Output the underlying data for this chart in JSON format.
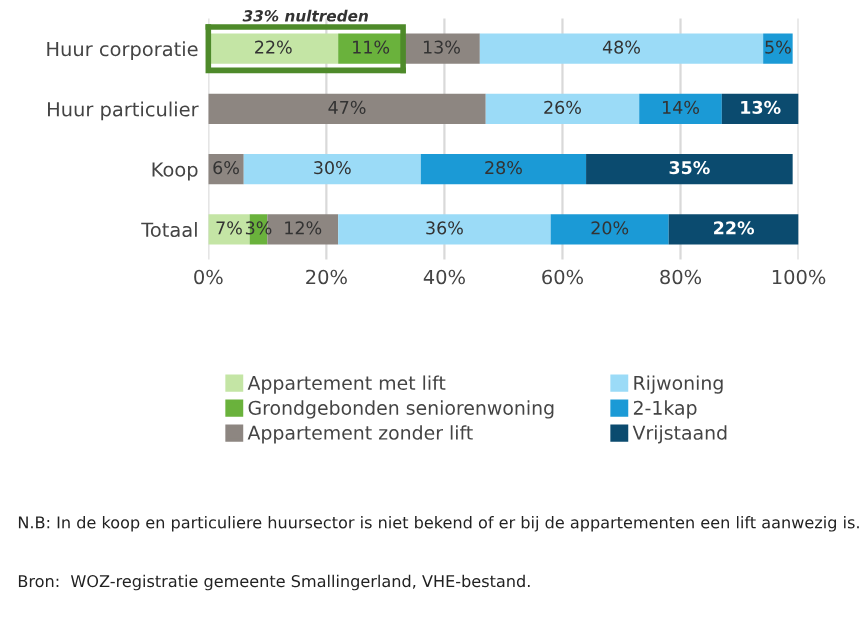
{
  "chart_data": {
    "type": "bar",
    "orientation": "horizontal",
    "stacked": true,
    "categories": [
      "Huur corporatie",
      "Huur particulier",
      "Koop",
      "Totaal"
    ],
    "series": [
      {
        "name": "Appartement met lift",
        "color": "#c4e5a5",
        "values": [
          22,
          null,
          null,
          7
        ],
        "value_labels": [
          "22%",
          null,
          null,
          "7%"
        ]
      },
      {
        "name": "Grondgebonden seniorenwoning",
        "color": "#6ab23c",
        "values": [
          11,
          null,
          null,
          3
        ],
        "value_labels": [
          "11%",
          null,
          null,
          "3%"
        ]
      },
      {
        "name": "Appartement zonder lift",
        "color": "#8d8681",
        "values": [
          13,
          47,
          6,
          12
        ],
        "value_labels": [
          "13%",
          "47%",
          "6%",
          "12%"
        ]
      },
      {
        "name": "Rijwoning",
        "color": "#9bdbf7",
        "values": [
          48,
          26,
          30,
          36
        ],
        "value_labels": [
          "48%",
          "26%",
          "30%",
          "36%"
        ]
      },
      {
        "name": "2-1kap",
        "color": "#1b9ad6",
        "values": [
          5,
          14,
          28,
          20
        ],
        "value_labels": [
          "5%",
          "14%",
          "28%",
          "20%"
        ]
      },
      {
        "name": "Vrijstaand",
        "color": "#0b4b6f",
        "values": [
          null,
          13,
          35,
          22
        ],
        "value_labels": [
          null,
          "13%",
          "35%",
          "22%"
        ]
      }
    ],
    "xlim": [
      0,
      100
    ],
    "xticks": [
      {
        "value": 0,
        "label": "0%"
      },
      {
        "value": 20,
        "label": "20%"
      },
      {
        "value": 40,
        "label": "40%"
      },
      {
        "value": 60,
        "label": "60%"
      },
      {
        "value": 80,
        "label": "80%"
      },
      {
        "value": 100,
        "label": "100%"
      }
    ],
    "grid": "x",
    "legend": "bottom",
    "annotations": [
      {
        "text": "33% nultreden",
        "x": 33,
        "y": "Huur corporatie"
      },
      "N.B: In de koop en particuliere huursector is niet bekend of er bij de appartementen een lift aanwezig is.",
      "Bron:  WOZ-registratie gemeente Smallingerland, VHE-bestand."
    ]
  }
}
